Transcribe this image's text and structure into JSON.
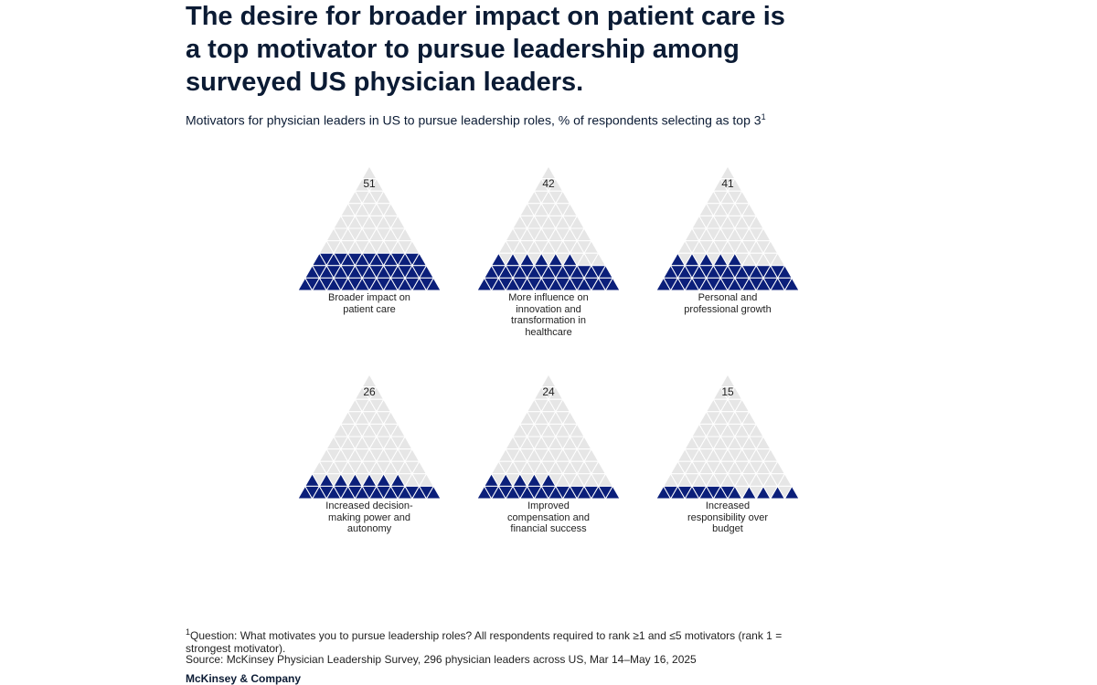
{
  "title": "The desire for broader impact on patient care is a top motivator to pursue leadership among surveyed US physician leaders.",
  "subtitle": "Motivators for physician leaders in US to pursue leadership roles, % of respondents selecting as top 3",
  "subtitle_marker": "1",
  "chart_data": {
    "type": "triangle",
    "categories": [
      "Broader impact on patient care",
      "More influence on innovation and transformation in healthcare",
      "Personal and professional growth",
      "Increased decision-making power and autonomy",
      "Improved compensation and financial success",
      "Increased responsibility over budget"
    ],
    "values": [
      51,
      42,
      41,
      26,
      24,
      15
    ],
    "color": "#0b1f7a",
    "background_color": "#e6e6e6"
  },
  "footnote": {
    "marker": "1",
    "text": "Question: What motivates you to pursue leadership roles? All respondents required to rank ≥1 and ≤5 motivators (rank 1 = strongest motivator)."
  },
  "source": "Source: McKinsey Physician Leadership Survey, 296 physician leaders across US, Mar 14–May 16, 2025",
  "brand": "McKinsey & Company"
}
